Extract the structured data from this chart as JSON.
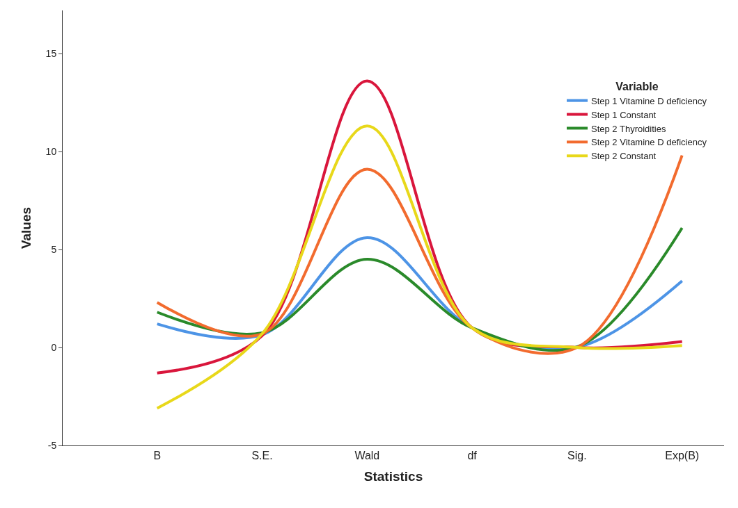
{
  "chart_data": {
    "type": "line",
    "xlabel": "Statistics",
    "ylabel": "Values",
    "legend_title": "Variable",
    "legend": "top right",
    "grid": false,
    "marker": "none",
    "line_style": "solid",
    "categories": [
      "B",
      "S.E.",
      "Wald",
      "df",
      "Sig.",
      "Exp(B)"
    ],
    "ylim": [
      -5,
      17.2
    ],
    "yticks": [
      -5,
      0,
      5,
      10,
      15
    ],
    "series": [
      {
        "name": "Step 1 Vitamine D deficiency",
        "color": "#4d94e6",
        "values": [
          1.2,
          0.65,
          5.6,
          1,
          0.02,
          3.4
        ]
      },
      {
        "name": "Step 1 Constant",
        "color": "#d9163c",
        "values": [
          -1.3,
          0.6,
          13.6,
          1,
          0.0,
          0.3
        ]
      },
      {
        "name": "Step 2 Thyroidities",
        "color": "#2a8a2a",
        "values": [
          1.8,
          0.75,
          4.5,
          1,
          0.03,
          6.1
        ]
      },
      {
        "name": "Step 2 Vitamine D deficiency",
        "color": "#f26b2e",
        "values": [
          2.3,
          0.7,
          9.1,
          1,
          0.0,
          9.8
        ]
      },
      {
        "name": "Step 2 Constant",
        "color": "#e8d81a",
        "values": [
          -3.1,
          0.7,
          11.3,
          1,
          0.0,
          0.1
        ]
      }
    ]
  }
}
